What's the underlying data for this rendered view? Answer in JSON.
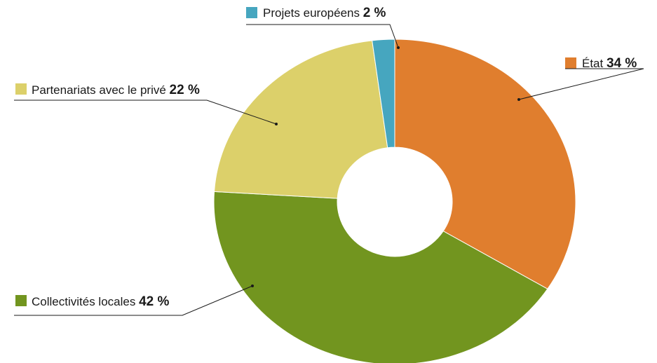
{
  "chart_data": {
    "type": "pie",
    "title": "",
    "donut": true,
    "series": [
      {
        "label": "État",
        "value_text": "34 %",
        "value": 34,
        "color": "#e07e2e"
      },
      {
        "label": "Collectivités locales",
        "value_text": "42 %",
        "value": 42,
        "color": "#72951f"
      },
      {
        "label": "Partenariats avec le privé",
        "value_text": "22 %",
        "value": 22,
        "color": "#dcd06a"
      },
      {
        "label": "Projets européens",
        "value_text": "2 %",
        "value": 2,
        "color": "#46a6bf"
      }
    ],
    "legend_placement": "callouts around the donut"
  }
}
